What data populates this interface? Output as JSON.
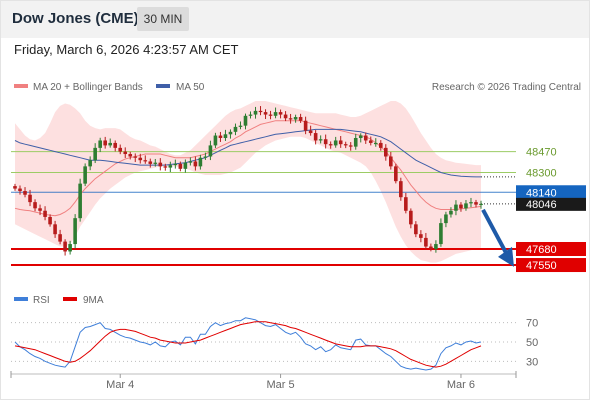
{
  "header": {
    "title": "Dow Jones (CME)",
    "interval": "30 MIN",
    "datetime": "Friday, March 6, 2026 4:23:57 AM CET"
  },
  "colors": {
    "up": "#2e7d32",
    "down": "#b71c1c",
    "band_fill": "#fde0e0",
    "ma20": "#f08080",
    "ma50": "#3f5fa8",
    "resistance": "#9ccc65",
    "pivot": "#1565c0",
    "support": "#e00000",
    "rsi": "#3f7fd9",
    "rsi_ma": "#e00000",
    "arrow": "#1e5aa8"
  },
  "chart_data": [
    {
      "type": "candlestick",
      "title": "",
      "legend": [
        {
          "label": "MA 20 + Bollinger Bands",
          "color": "#f08080"
        },
        {
          "label": "MA 50",
          "color": "#3f5fa8"
        }
      ],
      "source": "Research © 2026 Trading Central",
      "x_ticks": [
        "Mar 4",
        "Mar 5",
        "Mar 6"
      ],
      "ylim": [
        47380,
        48880
      ],
      "levels": [
        {
          "label": "48470",
          "value": 48470,
          "kind": "resistance"
        },
        {
          "label": "48300",
          "value": 48300,
          "kind": "resistance"
        },
        {
          "label": "48140",
          "value": 48140,
          "kind": "pivot"
        },
        {
          "label": "48046",
          "value": 48046,
          "kind": "last"
        },
        {
          "label": "47680",
          "value": 47680,
          "kind": "support"
        },
        {
          "label": "47550",
          "value": 47550,
          "kind": "support"
        }
      ],
      "close": [
        48170,
        48150,
        48120,
        48060,
        48010,
        47990,
        47940,
        47880,
        47800,
        47740,
        47660,
        47720,
        47930,
        48210,
        48350,
        48400,
        48500,
        48560,
        48520,
        48540,
        48500,
        48470,
        48450,
        48430,
        48420,
        48400,
        48390,
        48370,
        48380,
        48350,
        48340,
        48360,
        48370,
        48330,
        48380,
        48390,
        48350,
        48420,
        48430,
        48520,
        48600,
        48580,
        48610,
        48630,
        48670,
        48680,
        48760,
        48770,
        48800,
        48790,
        48770,
        48760,
        48790,
        48770,
        48740,
        48730,
        48750,
        48720,
        48640,
        48620,
        48560,
        48570,
        48530,
        48520,
        48560,
        48530,
        48520,
        48510,
        48580,
        48600,
        48560,
        48540,
        48540,
        48500,
        48430,
        48350,
        48230,
        48100,
        47990,
        47880,
        47800,
        47770,
        47700,
        47680,
        47720,
        47890,
        47960,
        47990,
        48040,
        48010,
        48050,
        48060,
        48040,
        48046
      ],
      "ma20": [
        48010,
        48000,
        47995,
        47990,
        47980,
        47970,
        47960,
        47955,
        47950,
        47960,
        47980,
        48010,
        48060,
        48120,
        48170,
        48210,
        48250,
        48280,
        48310,
        48340,
        48370,
        48390,
        48410,
        48420,
        48430,
        48440,
        48450,
        48450,
        48450,
        48450,
        48440,
        48430,
        48420,
        48420,
        48420,
        48420,
        48430,
        48440,
        48450,
        48470,
        48490,
        48510,
        48530,
        48550,
        48580,
        48600,
        48630,
        48650,
        48670,
        48690,
        48700,
        48710,
        48720,
        48720,
        48720,
        48720,
        48720,
        48720,
        48710,
        48700,
        48690,
        48680,
        48670,
        48660,
        48650,
        48640,
        48630,
        48620,
        48610,
        48600,
        48590,
        48570,
        48540,
        48510,
        48470,
        48420,
        48370,
        48320,
        48260,
        48200,
        48150,
        48100,
        48060,
        48030,
        48010,
        48000,
        48000,
        48000,
        48000,
        48005,
        48010,
        48015,
        48020,
        48025
      ],
      "ma50": [
        48560,
        48540,
        48530,
        48520,
        48510,
        48500,
        48490,
        48480,
        48470,
        48460,
        48450,
        48440,
        48430,
        48420,
        48410,
        48400,
        48400,
        48400,
        48395,
        48390,
        48385,
        48380,
        48375,
        48370,
        48365,
        48360,
        48360,
        48360,
        48360,
        48360,
        48360,
        48365,
        48370,
        48375,
        48380,
        48390,
        48400,
        48410,
        48420,
        48440,
        48460,
        48480,
        48500,
        48520,
        48530,
        48540,
        48550,
        48560,
        48570,
        48580,
        48590,
        48600,
        48610,
        48615,
        48620,
        48625,
        48630,
        48635,
        48640,
        48645,
        48650,
        48650,
        48650,
        48650,
        48650,
        48650,
        48645,
        48640,
        48635,
        48630,
        48620,
        48610,
        48600,
        48590,
        48570,
        48550,
        48520,
        48490,
        48460,
        48430,
        48400,
        48380,
        48360,
        48340,
        48320,
        48300,
        48290,
        48280,
        48275,
        48270,
        48268,
        48266,
        48265,
        48265
      ],
      "band_upper": [
        48700,
        48650,
        48600,
        48570,
        48560,
        48580,
        48620,
        48700,
        48790,
        48840,
        48860,
        48850,
        48820,
        48780,
        48720,
        48680,
        48660,
        48650,
        48660,
        48660,
        48660,
        48650,
        48620,
        48590,
        48570,
        48560,
        48540,
        48520,
        48510,
        48490,
        48470,
        48450,
        48440,
        48440,
        48460,
        48480,
        48520,
        48560,
        48600,
        48640,
        48680,
        48720,
        48760,
        48790,
        48810,
        48820,
        48840,
        48860,
        48880,
        48880,
        48880,
        48870,
        48860,
        48850,
        48840,
        48830,
        48820,
        48810,
        48800,
        48790,
        48780,
        48780,
        48780,
        48780,
        48780,
        48770,
        48760,
        48750,
        48750,
        48760,
        48780,
        48800,
        48820,
        48840,
        48860,
        48880,
        48880,
        48860,
        48820,
        48760,
        48690,
        48620,
        48560,
        48500,
        48450,
        48420,
        48400,
        48390,
        48380,
        48375,
        48370,
        48365,
        48360,
        48360
      ],
      "band_lower": [
        47880,
        47860,
        47840,
        47820,
        47800,
        47780,
        47760,
        47740,
        47720,
        47700,
        47700,
        47720,
        47780,
        47860,
        47920,
        47980,
        48040,
        48090,
        48130,
        48170,
        48200,
        48230,
        48260,
        48280,
        48300,
        48310,
        48320,
        48330,
        48340,
        48350,
        48350,
        48350,
        48350,
        48340,
        48330,
        48320,
        48300,
        48290,
        48280,
        48280,
        48280,
        48280,
        48290,
        48300,
        48320,
        48340,
        48380,
        48420,
        48460,
        48490,
        48520,
        48540,
        48560,
        48570,
        48580,
        48590,
        48590,
        48590,
        48580,
        48560,
        48540,
        48520,
        48500,
        48480,
        48470,
        48460,
        48440,
        48420,
        48400,
        48380,
        48350,
        48300,
        48230,
        48150,
        48060,
        47960,
        47860,
        47780,
        47710,
        47660,
        47620,
        47590,
        47580,
        47570,
        47570,
        47580,
        47600,
        47620,
        47640,
        47650,
        47660,
        47670,
        47680,
        47690
      ]
    },
    {
      "type": "line",
      "title": "",
      "legend": [
        {
          "label": "RSI",
          "color": "#3f7fd9"
        },
        {
          "label": "9MA",
          "color": "#e00000"
        }
      ],
      "ylim": [
        20,
        80
      ],
      "y_ticks": [
        70,
        50,
        30
      ],
      "series": [
        {
          "name": "RSI",
          "values": [
            50,
            45,
            42,
            38,
            35,
            33,
            30,
            28,
            26,
            25,
            24,
            30,
            45,
            60,
            65,
            66,
            68,
            70,
            64,
            63,
            60,
            57,
            55,
            54,
            52,
            50,
            49,
            47,
            50,
            46,
            45,
            50,
            51,
            47,
            55,
            55,
            48,
            58,
            58,
            66,
            70,
            67,
            69,
            70,
            72,
            72,
            75,
            74,
            73,
            70,
            67,
            66,
            68,
            64,
            60,
            58,
            60,
            55,
            48,
            46,
            42,
            45,
            40,
            42,
            47,
            44,
            43,
            42,
            52,
            53,
            47,
            46,
            46,
            42,
            38,
            35,
            30,
            25,
            23,
            22,
            23,
            22,
            21,
            22,
            26,
            38,
            44,
            46,
            49,
            47,
            50,
            51,
            49,
            50
          ]
        },
        {
          "name": "9MA",
          "values": [
            46,
            45,
            44,
            43,
            42,
            40,
            38,
            36,
            34,
            32,
            30,
            29,
            30,
            33,
            37,
            41,
            46,
            51,
            56,
            60,
            62,
            63,
            63,
            62,
            61,
            59,
            57,
            55,
            54,
            52,
            51,
            50,
            49,
            49,
            49,
            50,
            51,
            52,
            54,
            56,
            58,
            60,
            62,
            64,
            66,
            68,
            69,
            70,
            71,
            71,
            71,
            70,
            69,
            68,
            67,
            65,
            64,
            62,
            60,
            58,
            56,
            54,
            52,
            50,
            48,
            47,
            46,
            45,
            45,
            45,
            46,
            46,
            46,
            45,
            44,
            43,
            41,
            38,
            35,
            32,
            30,
            28,
            26,
            25,
            24,
            25,
            27,
            30,
            33,
            36,
            39,
            42,
            44,
            46
          ]
        }
      ]
    }
  ]
}
